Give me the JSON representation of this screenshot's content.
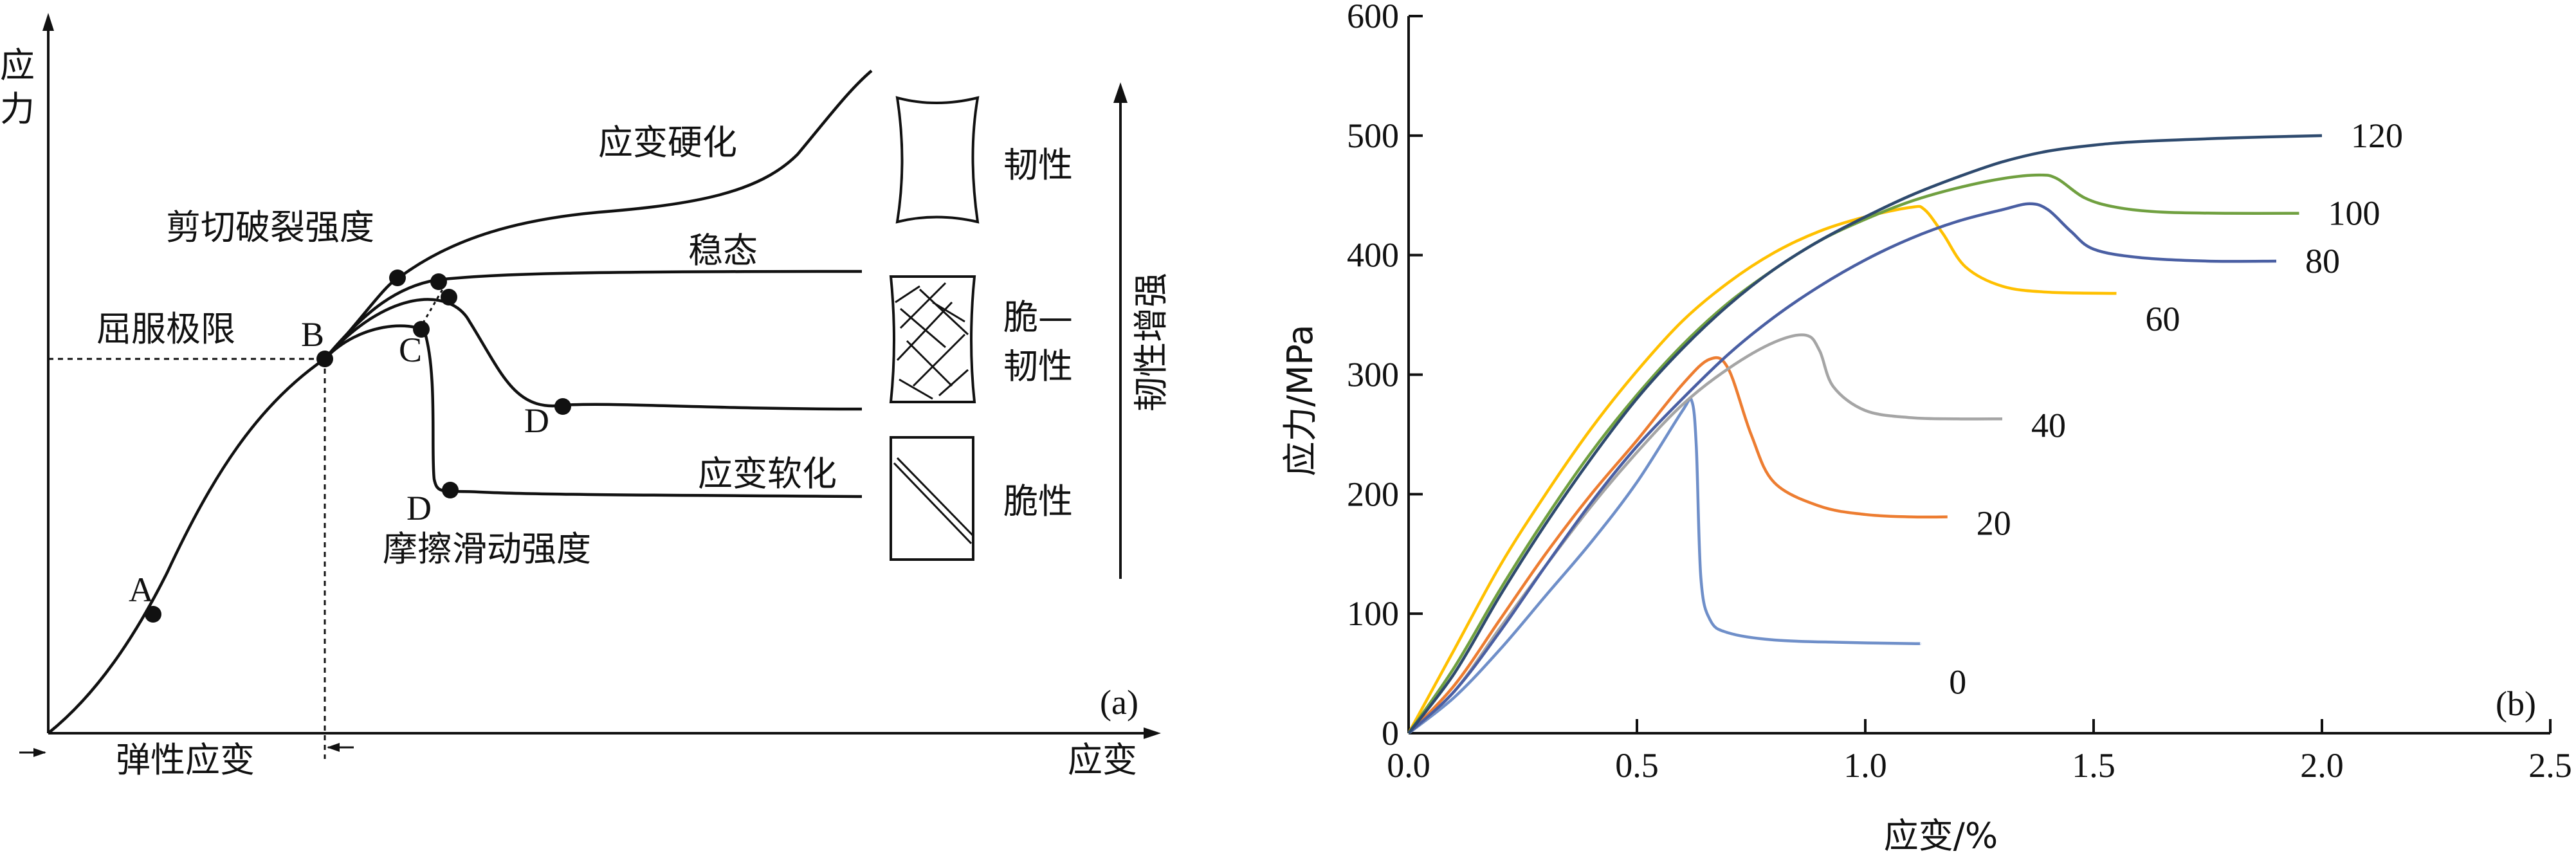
{
  "chart_data": [
    {
      "panel": "(a)",
      "type": "line",
      "ylabel": "应力",
      "xlabel": "应变",
      "points": [
        "A",
        "B",
        "C",
        "D",
        "D"
      ],
      "texts": {
        "yield": "屈服极限",
        "shear": "剪切破裂强度",
        "friction": "摩擦滑动强度",
        "hardening": "应变硬化",
        "steady": "稳态",
        "softening": "应变软化",
        "elastic": "弹性应变",
        "arrow": "韧性增强"
      },
      "legend": [
        {
          "label": "韧性"
        },
        {
          "label": "脆—\n韧性",
          "line1": "脆—",
          "line2": "韧性"
        },
        {
          "label": "脆性"
        }
      ]
    },
    {
      "panel": "(b)",
      "type": "line",
      "xlabel": "应变/%",
      "ylabel": "应力/MPa",
      "xlim": [
        0,
        2.5
      ],
      "ylim": [
        0,
        600
      ],
      "xticks": [
        "0.0",
        "0.5",
        "1.0",
        "1.5",
        "2.0",
        "2.5"
      ],
      "yticks": [
        "0",
        "100",
        "200",
        "300",
        "400",
        "500",
        "600"
      ],
      "series": [
        {
          "name": "0",
          "color": "#6f8fc9",
          "x": [
            0,
            0.1,
            0.2,
            0.3,
            0.4,
            0.5,
            0.6,
            0.62,
            0.63,
            0.64,
            0.66,
            0.7,
            0.8,
            0.95,
            1.1,
            1.12
          ],
          "y": [
            0,
            30,
            70,
            115,
            160,
            210,
            270,
            278,
            240,
            130,
            95,
            84,
            78,
            76,
            75,
            75
          ]
        },
        {
          "name": "20",
          "color": "#ed7d31",
          "x": [
            0,
            0.1,
            0.2,
            0.3,
            0.4,
            0.5,
            0.6,
            0.66,
            0.7,
            0.75,
            0.8,
            0.9,
            1.0,
            1.1,
            1.18
          ],
          "y": [
            0,
            40,
            95,
            150,
            200,
            245,
            292,
            313,
            305,
            250,
            210,
            190,
            183,
            181,
            181
          ]
        },
        {
          "name": "40",
          "color": "#a5a5a5",
          "x": [
            0,
            0.1,
            0.2,
            0.3,
            0.4,
            0.5,
            0.6,
            0.7,
            0.8,
            0.87,
            0.9,
            0.93,
            1.0,
            1.1,
            1.2,
            1.3
          ],
          "y": [
            0,
            35,
            88,
            140,
            190,
            235,
            275,
            305,
            327,
            333,
            320,
            290,
            270,
            264,
            263,
            263
          ]
        },
        {
          "name": "60",
          "color": "#ffc000",
          "x": [
            0,
            0.1,
            0.2,
            0.3,
            0.4,
            0.5,
            0.6,
            0.7,
            0.8,
            0.9,
            1.0,
            1.1,
            1.13,
            1.17,
            1.22,
            1.3,
            1.4,
            1.55
          ],
          "y": [
            0,
            70,
            140,
            200,
            255,
            303,
            345,
            377,
            402,
            420,
            432,
            440,
            438,
            418,
            390,
            374,
            369,
            368
          ]
        },
        {
          "name": "80",
          "color": "#4a5fa3",
          "x": [
            0,
            0.1,
            0.2,
            0.3,
            0.4,
            0.5,
            0.6,
            0.7,
            0.8,
            0.9,
            1.0,
            1.1,
            1.2,
            1.3,
            1.36,
            1.4,
            1.45,
            1.5,
            1.6,
            1.75,
            1.9
          ],
          "y": [
            0,
            35,
            85,
            140,
            193,
            240,
            280,
            317,
            348,
            374,
            396,
            414,
            428,
            438,
            443,
            438,
            420,
            405,
            398,
            395,
            395
          ]
        },
        {
          "name": "100",
          "color": "#70a040",
          "x": [
            0,
            0.1,
            0.2,
            0.3,
            0.4,
            0.5,
            0.6,
            0.7,
            0.8,
            0.9,
            1.0,
            1.1,
            1.2,
            1.3,
            1.38,
            1.42,
            1.48,
            1.55,
            1.65,
            1.8,
            1.95
          ],
          "y": [
            0,
            55,
            120,
            180,
            235,
            283,
            325,
            360,
            388,
            412,
            430,
            445,
            456,
            464,
            467,
            464,
            448,
            440,
            436,
            435,
            435
          ]
        },
        {
          "name": "120",
          "color": "#2e4a6e",
          "x": [
            0,
            0.1,
            0.2,
            0.3,
            0.4,
            0.5,
            0.6,
            0.7,
            0.8,
            0.9,
            1.0,
            1.1,
            1.2,
            1.3,
            1.4,
            1.5,
            1.6,
            1.8,
            2.0
          ],
          "y": [
            0,
            50,
            115,
            175,
            230,
            280,
            322,
            358,
            388,
            412,
            432,
            450,
            465,
            478,
            487,
            492,
            495,
            498,
            500
          ]
        }
      ]
    }
  ]
}
